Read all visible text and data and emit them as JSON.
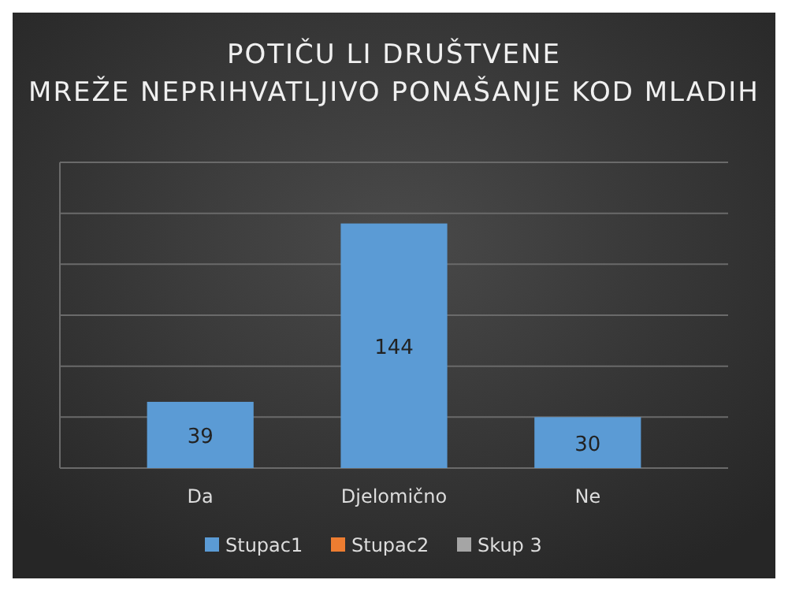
{
  "chart_data": {
    "type": "bar",
    "title": "POTIČU LI DRUŠTVENE MREŽE NEPRIHVATLJIVO PONAŠANJE KOD MLADIH",
    "categories": [
      "Da",
      "Djelomično",
      "Ne"
    ],
    "series": [
      {
        "name": "Stupac1",
        "color": "#5b9bd5",
        "values": [
          39,
          144,
          30
        ]
      },
      {
        "name": "Stupac2",
        "color": "#ed7d31",
        "values": [
          null,
          null,
          null
        ]
      },
      {
        "name": "Skup 3",
        "color": "#a5a5a5",
        "values": [
          null,
          null,
          null
        ]
      }
    ],
    "ylim": [
      0,
      180
    ],
    "yticks": [
      {
        "value": 0,
        "label": null
      },
      {
        "value": 30,
        "label": null
      },
      {
        "value": 60,
        "label": null
      },
      {
        "value": 90,
        "label": null
      },
      {
        "value": 120,
        "label": null
      },
      {
        "value": 150,
        "label": null
      },
      {
        "value": 180,
        "label": null
      }
    ],
    "tick_labels": "x",
    "grid": "y",
    "legend": "bottom",
    "data_labels": true
  }
}
